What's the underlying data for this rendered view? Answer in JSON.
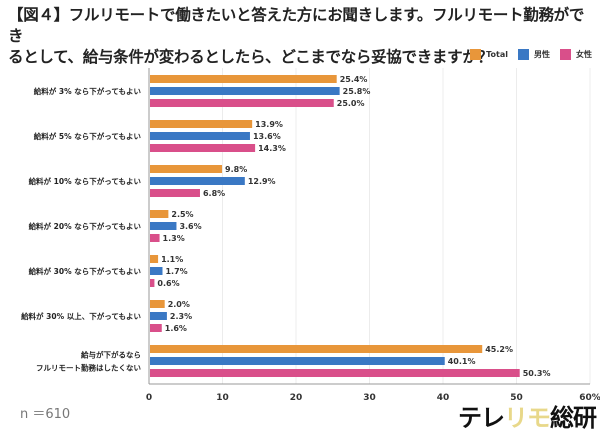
{
  "title_line1": "【図４】フルリモートで働きたいと答えた方にお聞きします。フルリモート勤務ができ",
  "title_line2": "るとして、給与条件が変わるとしたら、どこまでなら妥協できますか？",
  "sample_size": "n ＝610",
  "logo": {
    "part1": "テレ",
    "part2": "リモ",
    "part3": "総研"
  },
  "chart_data": {
    "type": "bar",
    "orientation": "horizontal",
    "title": "【図４】フルリモートで働きたいと答えた方にお聞きします。フルリモート勤務ができるとして、給与条件が変わるとしたら、どこまでなら妥協できますか？",
    "categories": [
      [
        "給料が 3% なら下がってもよい"
      ],
      [
        "給料が 5% なら下がってもよい"
      ],
      [
        "給料が 10% なら下がってもよい"
      ],
      [
        "給料が 20% なら下がってもよい"
      ],
      [
        "給料が 30% なら下がってもよい"
      ],
      [
        "給料が 30% 以上、下がってもよい"
      ],
      [
        "給与が下がるなら",
        "フルリモート勤務はしたくない"
      ]
    ],
    "series": [
      {
        "name": "Total",
        "color": "#e8963a",
        "values": [
          25.4,
          13.9,
          9.8,
          2.5,
          1.1,
          2.0,
          45.2
        ]
      },
      {
        "name": "男性",
        "color": "#3a78c4",
        "values": [
          25.8,
          13.6,
          12.9,
          3.6,
          1.7,
          2.3,
          40.1
        ]
      },
      {
        "name": "女性",
        "color": "#d94f8a",
        "values": [
          25.0,
          14.3,
          6.8,
          1.3,
          0.6,
          1.6,
          50.3
        ]
      }
    ],
    "value_suffix": "%",
    "xlim": [
      0,
      60
    ],
    "xticks": [
      "0",
      "10",
      "20",
      "30",
      "40",
      "50",
      "60%"
    ],
    "xlabel": "",
    "ylabel": "",
    "grid": true,
    "legend_position": "top-right"
  }
}
